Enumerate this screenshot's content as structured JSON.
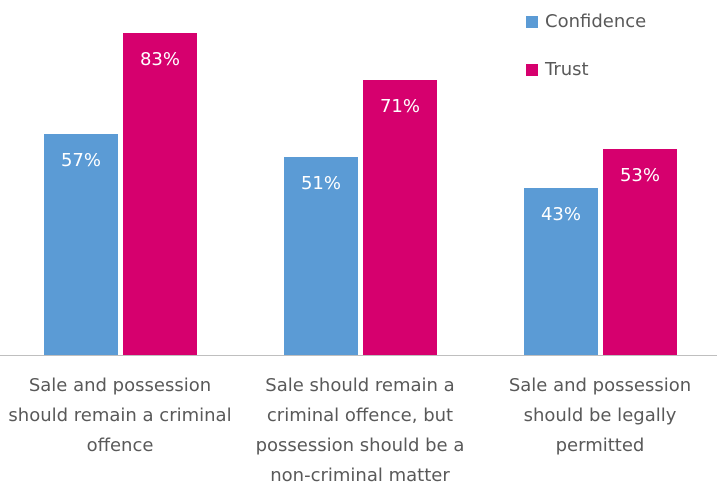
{
  "chart_data": {
    "type": "bar",
    "categories": [
      "Sale and possession should remain a criminal offence",
      "Sale should remain a criminal offence, but possession should be a non-criminal matter",
      "Sale and possession should be legally permitted"
    ],
    "series": [
      {
        "name": "Confidence",
        "color": "#5b9bd5",
        "values": [
          57,
          51,
          43
        ],
        "value_labels": [
          "57%",
          "51%",
          "43%"
        ]
      },
      {
        "name": "Trust",
        "color": "#d6006e",
        "values": [
          83,
          71,
          53
        ],
        "value_labels": [
          "83%",
          "71%",
          "53%"
        ]
      }
    ],
    "legend": "top-right"
  }
}
